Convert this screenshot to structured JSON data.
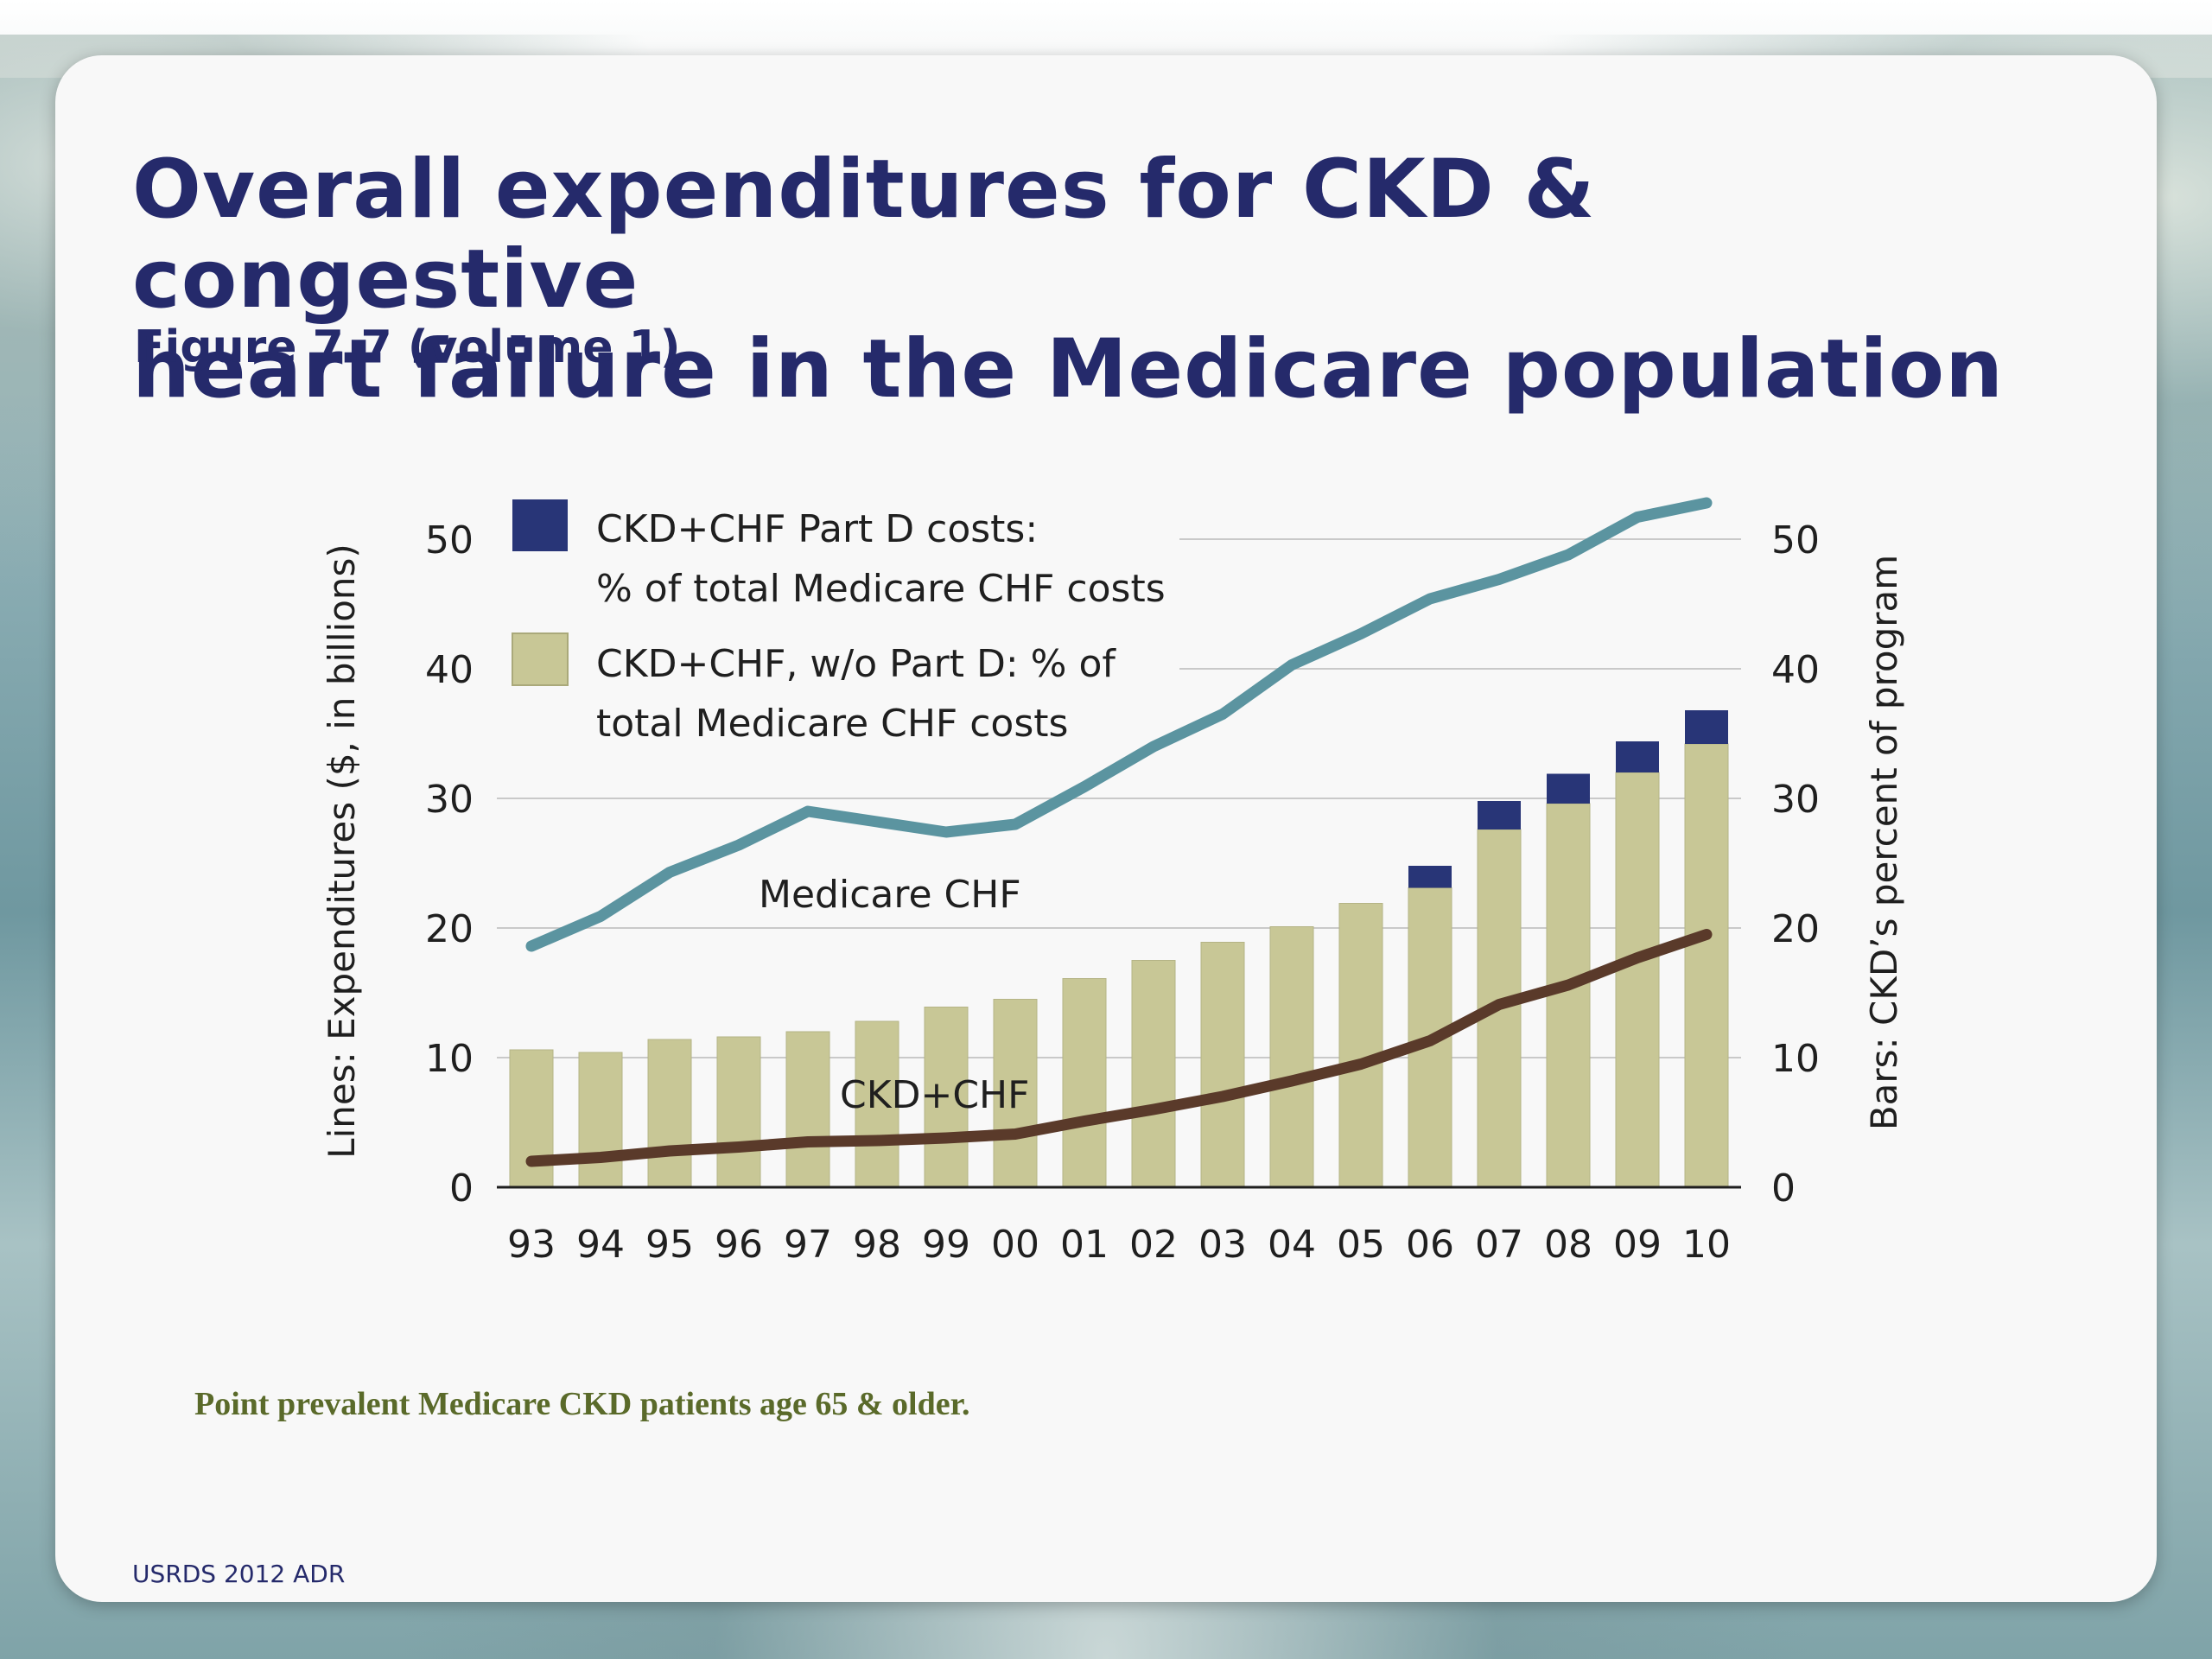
{
  "slide": {
    "title_line1": "Overall expenditures for CKD & congestive",
    "title_line2": "heart failure in the Medicare population",
    "subtitle": "Figure 7.7 (volume 1)",
    "note": "Point prevalent Medicare CKD patients age 65 & older.",
    "footer": "USRDS 2012 ADR",
    "logo": "USRDS"
  },
  "colors": {
    "title": "#252a6b",
    "bar_base": "#c8c796",
    "bar_partd": "#283577",
    "line_medicare_chf": "#5b94a0",
    "line_ckd_chf": "#5a3a2a"
  },
  "chart_data": {
    "type": "bar",
    "categories": [
      "93",
      "94",
      "95",
      "96",
      "97",
      "98",
      "99",
      "00",
      "01",
      "02",
      "03",
      "04",
      "05",
      "06",
      "07",
      "08",
      "09",
      "10"
    ],
    "y_left": {
      "label": "Lines: Expenditures ($, in billions)",
      "ylim": [
        0,
        50
      ],
      "ticks": [
        "0",
        "10",
        "20",
        "30",
        "40",
        "50"
      ]
    },
    "y_right": {
      "label": "Bars: CKD’s percent of program",
      "ylim": [
        0,
        50
      ],
      "ticks": [
        "0",
        "10",
        "20",
        "30",
        "40",
        "50"
      ]
    },
    "bars": [
      {
        "name_line1": "CKD+CHF, w/o Part D: % of",
        "name_line2": "total Medicare CHF costs",
        "axis": "right",
        "values": [
          10.6,
          10.4,
          11.4,
          11.6,
          12.0,
          12.8,
          13.9,
          14.5,
          16.1,
          17.5,
          18.9,
          20.1,
          21.9,
          23.1,
          27.6,
          29.6,
          32.0,
          34.2
        ]
      },
      {
        "name_line1": "CKD+CHF Part D costs:",
        "name_line2": "% of total Medicare CHF costs",
        "axis": "right",
        "values": [
          0,
          0,
          0,
          0,
          0,
          0,
          0,
          0,
          0,
          0,
          0,
          0,
          0,
          1.7,
          2.2,
          2.3,
          2.4,
          2.6
        ]
      }
    ],
    "lines": [
      {
        "name": "Medicare CHF",
        "axis": "left",
        "values": [
          18.6,
          20.9,
          24.3,
          26.4,
          29.0,
          28.2,
          27.4,
          28.0,
          30.9,
          34.0,
          36.5,
          40.3,
          42.7,
          45.4,
          46.9,
          48.8,
          51.7,
          52.8
        ]
      },
      {
        "name": "CKD+CHF",
        "axis": "left",
        "values": [
          2.0,
          2.3,
          2.8,
          3.1,
          3.5,
          3.6,
          3.8,
          4.1,
          5.1,
          6.0,
          7.0,
          8.2,
          9.5,
          11.3,
          14.1,
          15.6,
          17.7,
          19.5
        ]
      }
    ],
    "grid": "horizontal",
    "legend_position": "top-left"
  }
}
